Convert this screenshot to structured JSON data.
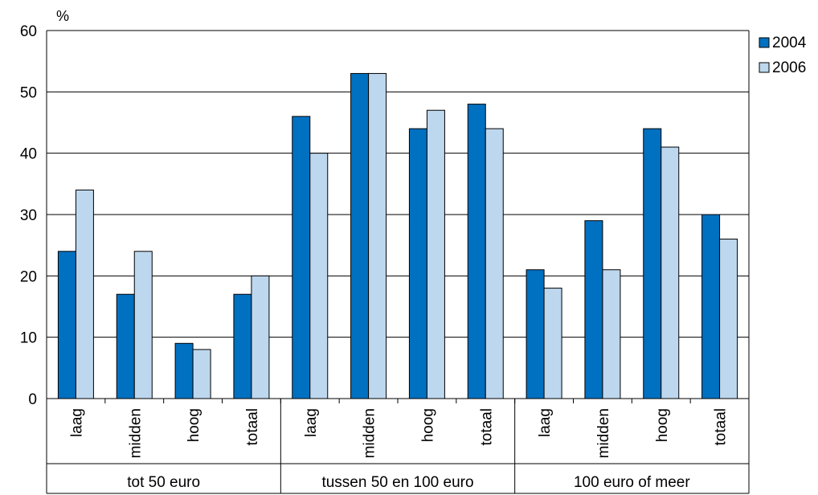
{
  "chart_data": {
    "type": "bar",
    "ylabel": "%",
    "ylim": [
      0,
      60
    ],
    "yticks": [
      0,
      10,
      20,
      30,
      40,
      50,
      60
    ],
    "grid": true,
    "legend_position": "top-right",
    "groups": [
      {
        "label": "tot 50 euro",
        "categories": [
          "laag",
          "midden",
          "hoog",
          "totaal"
        ]
      },
      {
        "label": "tussen 50 en 100 euro",
        "categories": [
          "laag",
          "midden",
          "hoog",
          "totaal"
        ]
      },
      {
        "label": "100 euro of meer",
        "categories": [
          "laag",
          "midden",
          "hoog",
          "totaal"
        ]
      }
    ],
    "series": [
      {
        "name": "2004",
        "color": "#0070C0",
        "values": [
          24,
          17,
          9,
          17,
          46,
          53,
          44,
          48,
          21,
          29,
          44,
          30
        ]
      },
      {
        "name": "2006",
        "color": "#BDD7EE",
        "values": [
          34,
          24,
          8,
          20,
          40,
          53,
          47,
          44,
          18,
          21,
          41,
          26
        ]
      }
    ]
  }
}
